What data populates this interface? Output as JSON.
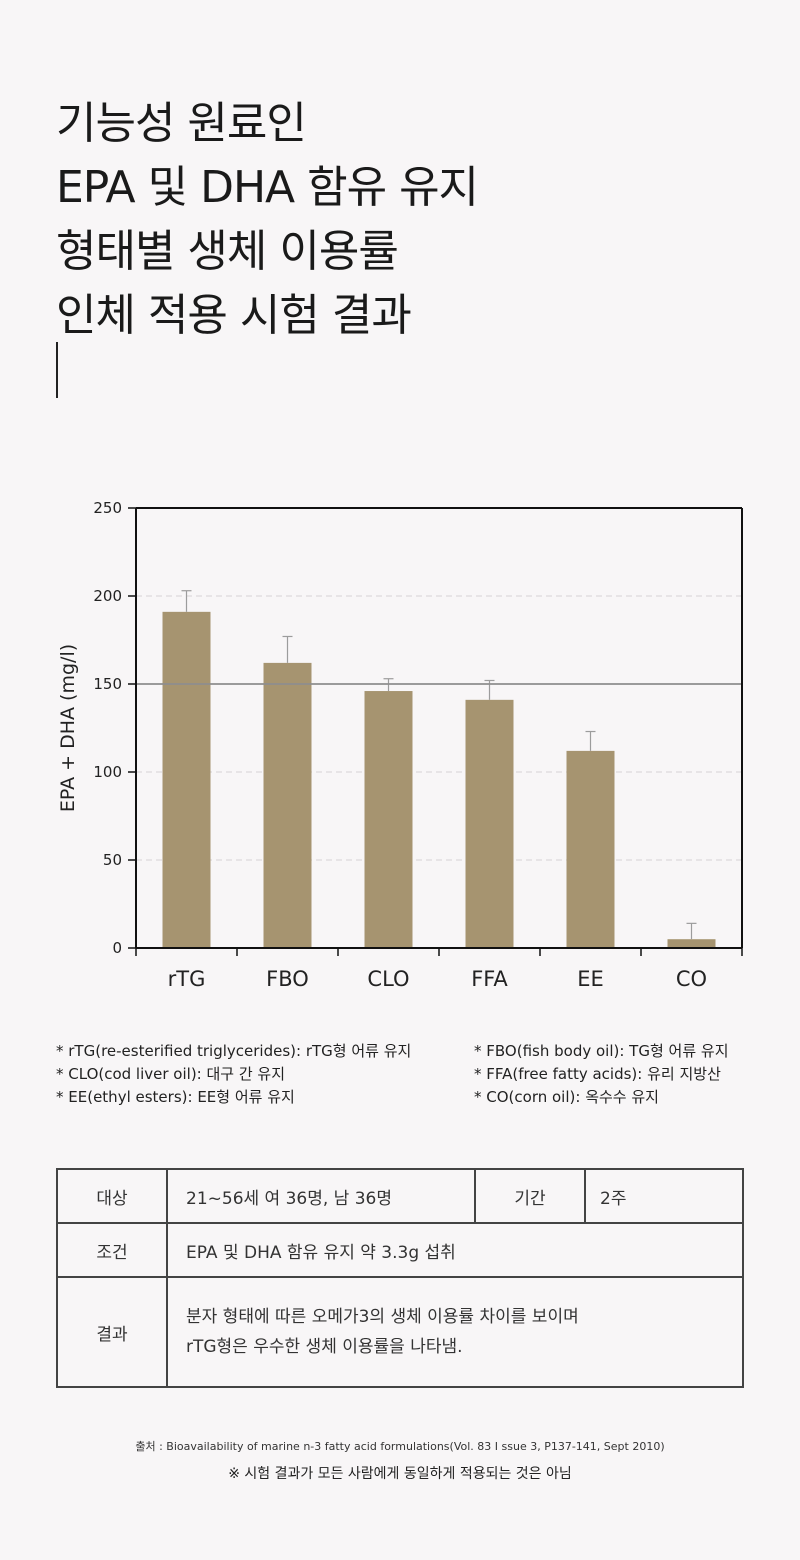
{
  "title": {
    "lines": [
      "기능성 원료인",
      "EPA 및 DHA 함유 유지",
      "형태별 생체 이용률",
      "인체 적용 시험 결과"
    ]
  },
  "chart_data": {
    "type": "bar",
    "title": "",
    "xlabel": "",
    "ylabel": "EPA + DHA (mg/l)",
    "categories": [
      "rTG",
      "FBO",
      "CLO",
      "FFA",
      "EE",
      "CO"
    ],
    "values": [
      191,
      162,
      146,
      141,
      112,
      5
    ],
    "error_upper": [
      203,
      177,
      153,
      152,
      123,
      14
    ],
    "ylim": [
      0,
      250
    ],
    "yticks": [
      0,
      50,
      100,
      150,
      200,
      250
    ],
    "reference_line": 150,
    "grid": "dashed-horizontal",
    "bar_color": "#a69470"
  },
  "notes": {
    "left": [
      "* rTG(re-esterified triglycerides): rTG형 어류 유지",
      "* CLO(cod liver oil): 대구 간 유지",
      "* EE(ethyl esters): EE형 어류 유지"
    ],
    "right": [
      "* FBO(fish body oil): TG형 어류 유지",
      "* FFA(free fatty acids): 유리 지방산",
      "* CO(corn oil): 옥수수 유지"
    ]
  },
  "table": {
    "subject_label": "대상",
    "subject_value": "21~56세 여 36명, 남 36명",
    "period_label": "기간",
    "period_value": "2주",
    "condition_label": "조건",
    "condition_value": "EPA 및 DHA 함유 유지 약 3.3g  섭취",
    "result_label": "결과",
    "result_lines": [
      "분자 형태에 따른 오메가3의 생체 이용률 차이를 보이며",
      "rTG형은 우수한 생체 이용률을 나타냄."
    ]
  },
  "footer": {
    "source": "출처 : Bioavailability of marine n-3 fatty acid formulations(Vol. 83 I ssue 3, P137-141, Sept 2010)",
    "disclaimer": "※ 시험 결과가 모든 사람에게 동일하게 적용되는 것은 아님"
  }
}
